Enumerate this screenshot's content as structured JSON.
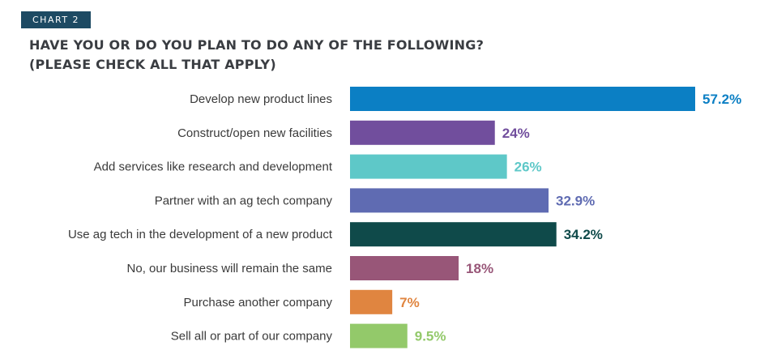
{
  "header": {
    "badge": "CHART 2",
    "title_line1": "HAVE YOU OR DO YOU PLAN TO DO ANY OF THE FOLLOWING?",
    "title_line2": "(PLEASE CHECK ALL THAT APPLY)"
  },
  "chart_data": {
    "type": "bar",
    "orientation": "horizontal",
    "title": "HAVE YOU OR DO YOU PLAN TO DO ANY OF THE FOLLOWING? (PLEASE CHECK ALL THAT APPLY)",
    "xlabel": "",
    "ylabel": "",
    "grid": false,
    "legend": "none",
    "unit": "%",
    "categories": [
      "Develop new product lines",
      "Construct/open new facilities",
      "Add services like research and development",
      "Partner with an ag tech company",
      "Use ag tech in the development of a new product",
      "No, our business will remain the same",
      "Purchase another company",
      "Sell all or part of our company"
    ],
    "values": [
      57.2,
      24,
      26,
      32.9,
      34.2,
      18,
      7,
      9.5
    ],
    "value_labels": [
      "57.2%",
      "24%",
      "26%",
      "32.9%",
      "34.2%",
      "18%",
      "7%",
      "9.5%"
    ],
    "colors": [
      "#0b7fc4",
      "#714e9d",
      "#5ec8c8",
      "#5f6bb2",
      "#0f4a4a",
      "#985678",
      "#e08540",
      "#93c96a"
    ],
    "xlim": [
      0,
      57.2
    ]
  }
}
